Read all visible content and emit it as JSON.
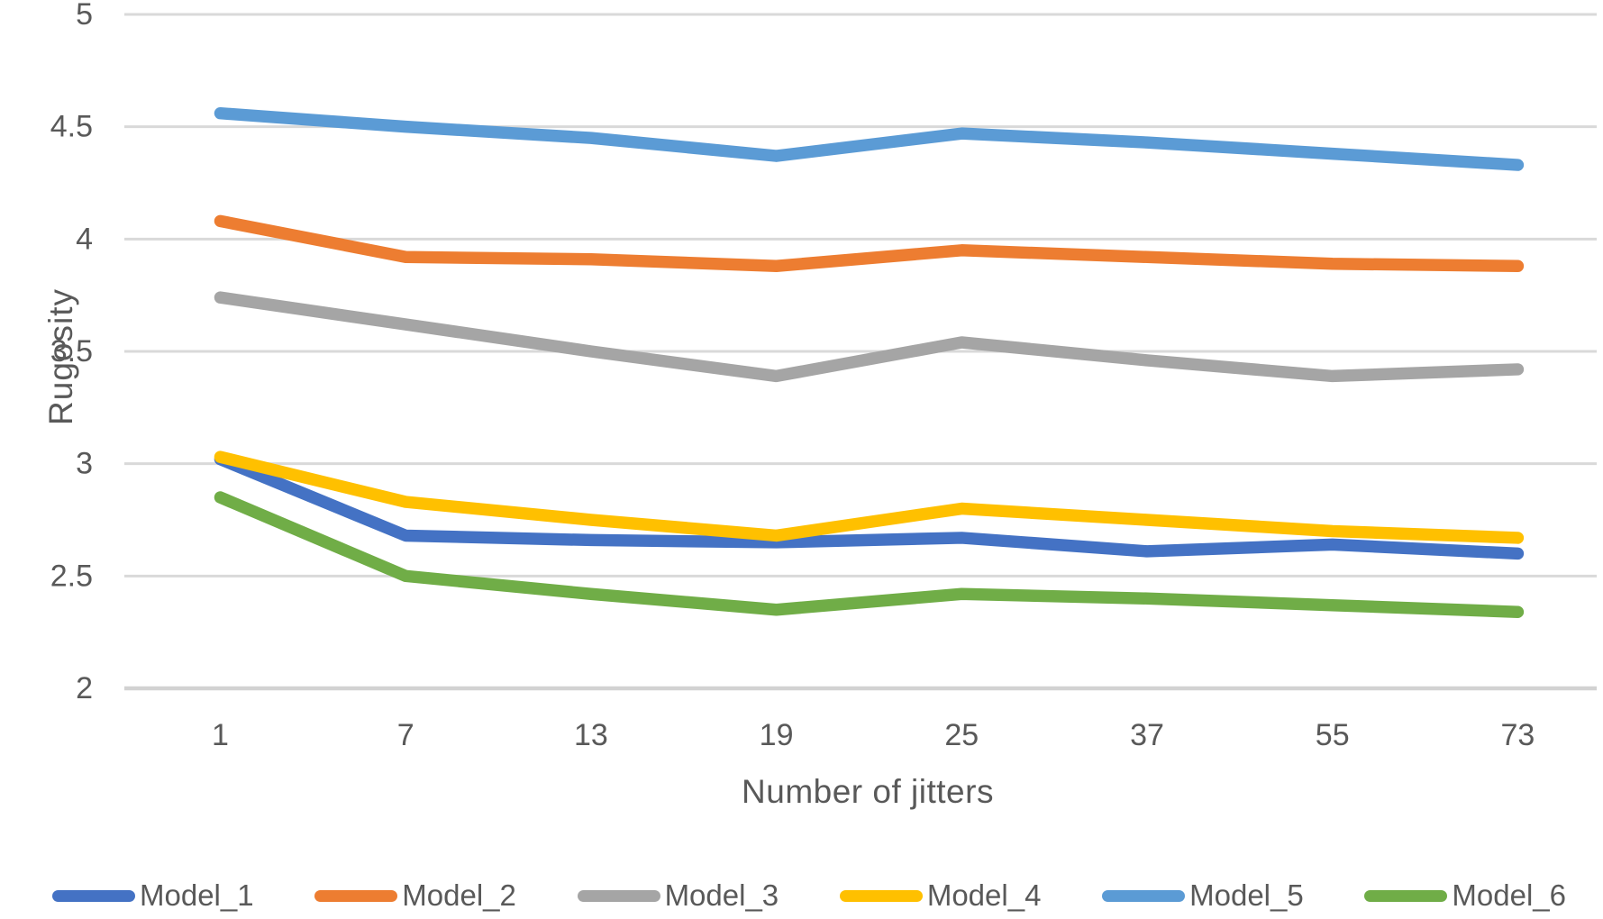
{
  "chart_data": {
    "type": "line",
    "title": "",
    "xlabel": "Number of jitters",
    "ylabel": "Rugosity",
    "categories": [
      "1",
      "7",
      "13",
      "19",
      "25",
      "37",
      "55",
      "73"
    ],
    "y_tick_labels": [
      "5",
      "4.5",
      "4",
      "3.5",
      "3",
      "2.5",
      "2"
    ],
    "ylim": [
      2,
      5
    ],
    "y_step": 0.5,
    "grid": true,
    "legend_position": "bottom",
    "grid_color": "#D9D9D9",
    "axis_line_color": "#D2D2D2",
    "text_color": "#595959",
    "series": [
      {
        "name": "Model_1",
        "color": "#4472C4",
        "values": [
          3.02,
          2.68,
          2.66,
          2.65,
          2.67,
          2.61,
          2.64,
          2.6
        ]
      },
      {
        "name": "Model_2",
        "color": "#ED7D31",
        "values": [
          4.08,
          3.92,
          3.91,
          3.88,
          3.95,
          3.92,
          3.89,
          3.88
        ]
      },
      {
        "name": "Model_3",
        "color": "#A5A5A5",
        "values": [
          3.74,
          3.62,
          3.5,
          3.39,
          3.54,
          3.46,
          3.39,
          3.42
        ]
      },
      {
        "name": "Model_4",
        "color": "#FFC000",
        "values": [
          3.03,
          2.83,
          2.75,
          2.68,
          2.8,
          2.75,
          2.7,
          2.67
        ]
      },
      {
        "name": "Model_5",
        "color": "#5B9BD5",
        "values": [
          4.56,
          4.5,
          4.45,
          4.37,
          4.47,
          4.43,
          4.38,
          4.33
        ]
      },
      {
        "name": "Model_6",
        "color": "#70AD47",
        "values": [
          2.85,
          2.5,
          2.42,
          2.35,
          2.42,
          2.4,
          2.37,
          2.34
        ]
      }
    ]
  }
}
